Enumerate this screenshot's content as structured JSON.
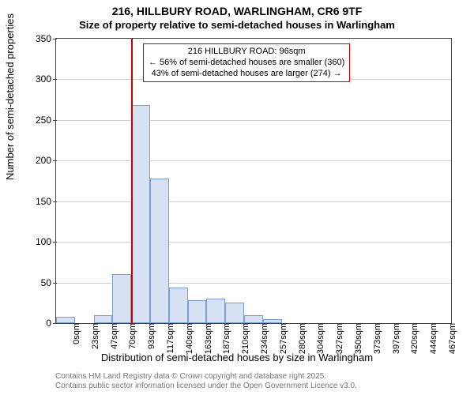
{
  "title_main": "216, HILLBURY ROAD, WARLINGHAM, CR6 9TF",
  "title_sub": "Size of property relative to semi-detached houses in Warlingham",
  "chart": {
    "type": "histogram",
    "ylabel": "Number of semi-detached properties",
    "xlabel": "Distribution of semi-detached houses by size in Warlingham",
    "background_color": "#ffffff",
    "grid_color": "#d0d0d0",
    "bar_fill": "#d6e2f4",
    "bar_stroke": "#7a9fd6",
    "marker_color": "#cc0000",
    "ylim": [
      0,
      350
    ],
    "ytick_step": 50,
    "categories": [
      "0sqm",
      "23sqm",
      "47sqm",
      "70sqm",
      "93sqm",
      "117sqm",
      "140sqm",
      "163sqm",
      "187sqm",
      "210sqm",
      "234sqm",
      "257sqm",
      "280sqm",
      "304sqm",
      "327sqm",
      "350sqm",
      "373sqm",
      "397sqm",
      "420sqm",
      "444sqm",
      "467sqm"
    ],
    "values": [
      8,
      0,
      10,
      60,
      268,
      178,
      44,
      28,
      30,
      25,
      10,
      5,
      0,
      0,
      0,
      0,
      0,
      0,
      0,
      0,
      0
    ],
    "marker_bin_index": 4,
    "annotation": {
      "line1": "216 HILLBURY ROAD: 96sqm",
      "line2": "← 56% of semi-detached houses are smaller (360)",
      "line3": "43% of semi-detached houses are larger (274) →"
    },
    "title_fontsize": 14,
    "label_fontsize": 13,
    "tick_fontsize": 12
  },
  "attribution": {
    "line1": "Contains HM Land Registry data © Crown copyright and database right 2025.",
    "line2": "Contains public sector information licensed under the Open Government Licence v3.0."
  }
}
